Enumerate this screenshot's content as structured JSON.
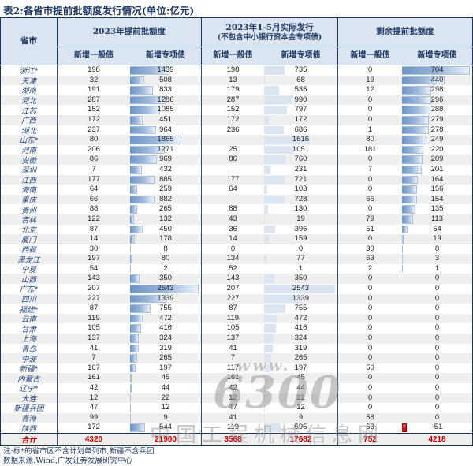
{
  "title": "表2:各省市提前批额度发行情况(单位:亿元)",
  "table": {
    "col_province": "省市",
    "sub_general": "新增一般债",
    "sub_special": "新增专项债",
    "groups": [
      {
        "label": "2023年提前批额度",
        "label2": ""
      },
      {
        "label": "2023年1-5月实际发行",
        "label2": "(不包含中小银行资本金专项债)"
      },
      {
        "label": "剩余提前批额度",
        "label2": ""
      }
    ],
    "bar_scales": {
      "col1": 2600,
      "col3": 2600,
      "col5": 720
    },
    "bar_colors": {
      "gradient_start": "#6e95c8",
      "gradient_end": "#ecf2fa",
      "flat": "#dbe5f1",
      "negative": "#b90000"
    },
    "rows": [
      {
        "name": "浙江*",
        "v": [
          198,
          1439,
          198,
          735,
          0,
          704
        ]
      },
      {
        "name": "天津",
        "v": [
          32,
          508,
          13,
          68,
          19,
          440
        ]
      },
      {
        "name": "湖南",
        "v": [
          191,
          833,
          179,
          535,
          12,
          298
        ]
      },
      {
        "name": "河北",
        "v": [
          287,
          1286,
          287,
          990,
          0,
          296
        ]
      },
      {
        "name": "江苏",
        "v": [
          152,
          1085,
          152,
          797,
          0,
          288
        ]
      },
      {
        "name": "广西",
        "v": [
          172,
          451,
          172,
          172,
          0,
          279
        ]
      },
      {
        "name": "湖北",
        "v": [
          237,
          964,
          236,
          686,
          1,
          278
        ]
      },
      {
        "name": "山东*",
        "v": [
          80,
          1865,
          "",
          1616,
          80,
          249
        ]
      },
      {
        "name": "河南",
        "v": [
          206,
          1271,
          25,
          1051,
          181,
          220
        ]
      },
      {
        "name": "安徽",
        "v": [
          86,
          969,
          86,
          760,
          0,
          209
        ]
      },
      {
        "name": "深圳",
        "v": [
          7,
          432,
          "",
          231,
          7,
          201
        ]
      },
      {
        "name": "江西",
        "v": [
          177,
          885,
          177,
          721,
          0,
          164
        ]
      },
      {
        "name": "海南",
        "v": [
          64,
          259,
          64,
          103,
          0,
          156
        ]
      },
      {
        "name": "重庆",
        "v": [
          66,
          882,
          "",
          728,
          66,
          154
        ]
      },
      {
        "name": "贵州",
        "v": [
          88,
          265,
          88,
          130,
          0,
          135
        ]
      },
      {
        "name": "吉林",
        "v": [
          122,
          132,
          43,
          19,
          79,
          113
        ]
      },
      {
        "name": "北京",
        "v": [
          87,
          450,
          36,
          396,
          51,
          54
        ]
      },
      {
        "name": "厦门",
        "v": [
          14,
          178,
          14,
          159,
          0,
          19
        ]
      },
      {
        "name": "西藏",
        "v": [
          30,
          8,
          0,
          0,
          30,
          8
        ]
      },
      {
        "name": "黑龙江",
        "v": [
          197,
          80,
          134,
          77,
          63,
          3
        ]
      },
      {
        "name": "宁夏",
        "v": [
          54,
          2,
          52,
          1,
          2,
          1
        ]
      },
      {
        "name": "山西",
        "v": [
          143,
          350,
          143,
          350,
          0,
          0
        ]
      },
      {
        "name": "广东*",
        "v": [
          207,
          2543,
          207,
          2543,
          0,
          0
        ]
      },
      {
        "name": "四川",
        "v": [
          227,
          1339,
          227,
          1339,
          0,
          0
        ]
      },
      {
        "name": "福建*",
        "v": [
          87,
          755,
          87,
          755,
          0,
          0
        ]
      },
      {
        "name": "云南",
        "v": [
          119,
          472,
          119,
          472,
          0,
          0
        ]
      },
      {
        "name": "甘肃",
        "v": [
          105,
          416,
          105,
          416,
          0,
          0
        ]
      },
      {
        "name": "上海",
        "v": [
          137,
          324,
          137,
          324,
          0,
          0
        ]
      },
      {
        "name": "青岛",
        "v": [
          41,
          319,
          41,
          319,
          0,
          0
        ]
      },
      {
        "name": "宁波",
        "v": [
          7,
          265,
          7,
          265,
          0,
          0
        ]
      },
      {
        "name": "新疆*",
        "v": [
          167,
          197,
          117,
          197,
          50,
          0
        ]
      },
      {
        "name": "内蒙古",
        "v": [
          161,
          45,
          161,
          45,
          0,
          0
        ]
      },
      {
        "name": "辽宁*",
        "v": [
          42,
          44,
          42,
          44,
          0,
          0
        ]
      },
      {
        "name": "大连",
        "v": [
          12,
          22,
          12,
          22,
          0,
          0
        ]
      },
      {
        "name": "新疆兵团",
        "v": [
          47,
          12,
          47,
          12,
          0,
          0
        ]
      },
      {
        "name": "青海",
        "v": [
          99,
          9,
          41,
          9,
          58,
          0
        ]
      },
      {
        "name": "陕西",
        "v": [
          172,
          544,
          119,
          595,
          53,
          -51
        ]
      }
    ],
    "total": {
      "name": "合计",
      "v": [
        4320,
        21900,
        3568,
        17682,
        752,
        4218
      ]
    }
  },
  "notes": {
    "line1": "注:标*的省市区不含计划单列市,新疆不含兵团",
    "line2": "数据来源:Wind,广发证券发展研究中心"
  },
  "watermark": {
    "line1": "www.",
    "line2": "6300",
    "line3": "中国工程机械信息网"
  },
  "colors": {
    "header_bg": "#dbe5f1",
    "border_navy": "#17375e",
    "stripe": "#efefef",
    "total_red": "#c00000",
    "text_navy": "#1f3864"
  }
}
